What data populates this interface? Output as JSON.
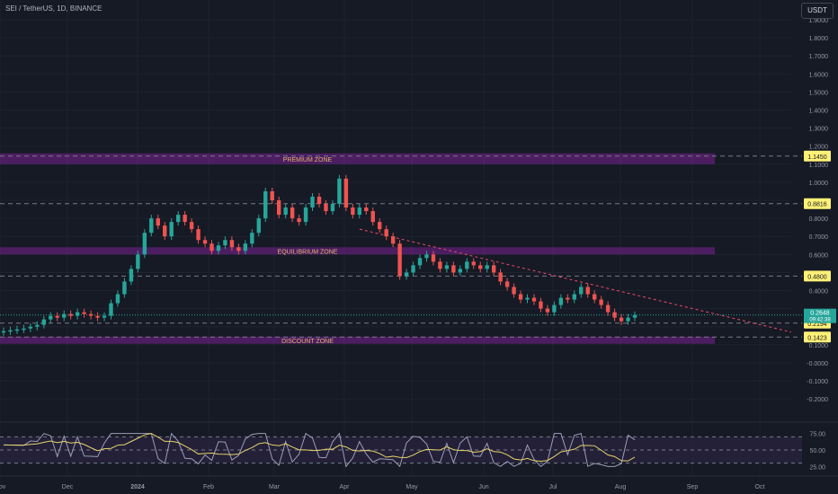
{
  "header": {
    "symbol": "SEI / TetherUS, 1D, BINANCE",
    "quote_currency": "USDT"
  },
  "colors": {
    "background": "#161a25",
    "grid": "#1f2330",
    "axis_text": "#9598a1",
    "candle_up": "#26a69a",
    "candle_down": "#ef5350",
    "zone_fill": "#8e24aa",
    "zone_text": "#e0b36a",
    "level_line": "#787b86",
    "level_label_bg": "#fff176",
    "trendline": "#e74c6a",
    "current_price_bg": "#26a69a",
    "rsi_line": "#9c9eb8",
    "rsi_ma": "#e6d36a",
    "rsi_band": "#2a2340"
  },
  "chart_data": {
    "type": "candlestick",
    "price_axis": {
      "ticks": [
        "1.9000",
        "1.8000",
        "1.7000",
        "1.6000",
        "1.5000",
        "1.4000",
        "1.3000",
        "1.2000",
        "1.1000",
        "1.0000",
        "0.9000",
        "0.8000",
        "0.7000",
        "0.6000",
        "0.5000",
        "0.4000",
        "0.3000",
        "0.2000",
        "0.1000",
        "-0.0000",
        "-0.1000",
        "-0.2000"
      ],
      "scale": "log-like",
      "range": [
        -0.25,
        2.0
      ]
    },
    "time_axis": {
      "labels": [
        "Nov",
        "Dec",
        "2024",
        "Feb",
        "Mar",
        "Apr",
        "May",
        "Jun",
        "Jul",
        "Aug",
        "Sep",
        "Oct"
      ]
    },
    "zones": [
      {
        "label": "PREMIUM ZONE",
        "low": 1.1,
        "high": 1.16
      },
      {
        "label": "EQUILIBRIUM ZONE",
        "low": 0.6,
        "high": 0.64
      },
      {
        "label": "DISCOUNT ZONE",
        "low": 0.11,
        "high": 0.145
      }
    ],
    "levels": [
      {
        "label": "1.1450",
        "value": 1.145
      },
      {
        "label": "0.8816",
        "value": 0.8816
      },
      {
        "label": "0.4800",
        "value": 0.48
      },
      {
        "label": "0.2194",
        "value": 0.2194
      },
      {
        "label": "0.1423",
        "value": 0.1423
      }
    ],
    "current_price": {
      "value": 0.2648,
      "label": "0.2648",
      "countdown": "09:42:38"
    },
    "trendline": {
      "from": {
        "time": "Apr 1",
        "price": 0.74
      },
      "to": {
        "time": "Oct 5",
        "price": 0.17
      }
    },
    "price_series": [
      [
        0.17,
        0.175
      ],
      [
        0.175,
        0.18
      ],
      [
        0.18,
        0.185
      ],
      [
        0.185,
        0.19
      ],
      [
        0.19,
        0.2
      ],
      [
        0.2,
        0.21
      ],
      [
        0.21,
        0.24
      ],
      [
        0.24,
        0.26
      ],
      [
        0.26,
        0.25
      ],
      [
        0.25,
        0.27
      ],
      [
        0.27,
        0.26
      ],
      [
        0.26,
        0.28
      ],
      [
        0.28,
        0.27
      ],
      [
        0.27,
        0.26
      ],
      [
        0.26,
        0.25
      ],
      [
        0.25,
        0.26
      ],
      [
        0.26,
        0.33
      ],
      [
        0.33,
        0.38
      ],
      [
        0.38,
        0.45
      ],
      [
        0.45,
        0.52
      ],
      [
        0.52,
        0.6
      ],
      [
        0.6,
        0.72
      ],
      [
        0.72,
        0.8
      ],
      [
        0.8,
        0.76
      ],
      [
        0.76,
        0.7
      ],
      [
        0.7,
        0.78
      ],
      [
        0.78,
        0.82
      ],
      [
        0.82,
        0.78
      ],
      [
        0.78,
        0.74
      ],
      [
        0.74,
        0.68
      ],
      [
        0.68,
        0.66
      ],
      [
        0.66,
        0.62
      ],
      [
        0.62,
        0.65
      ],
      [
        0.65,
        0.68
      ],
      [
        0.68,
        0.64
      ],
      [
        0.64,
        0.62
      ],
      [
        0.62,
        0.66
      ],
      [
        0.66,
        0.72
      ],
      [
        0.72,
        0.8
      ],
      [
        0.8,
        0.95
      ],
      [
        0.95,
        0.9
      ],
      [
        0.9,
        0.82
      ],
      [
        0.82,
        0.86
      ],
      [
        0.86,
        0.8
      ],
      [
        0.8,
        0.78
      ],
      [
        0.78,
        0.86
      ],
      [
        0.86,
        0.92
      ],
      [
        0.92,
        0.88
      ],
      [
        0.88,
        0.84
      ],
      [
        0.84,
        0.88
      ],
      [
        0.88,
        1.02
      ],
      [
        1.02,
        0.86
      ],
      [
        0.86,
        0.82
      ],
      [
        0.82,
        0.86
      ],
      [
        0.86,
        0.84
      ],
      [
        0.84,
        0.78
      ],
      [
        0.78,
        0.74
      ],
      [
        0.74,
        0.7
      ],
      [
        0.7,
        0.66
      ],
      [
        0.66,
        0.48
      ],
      [
        0.48,
        0.5
      ],
      [
        0.5,
        0.54
      ],
      [
        0.54,
        0.58
      ],
      [
        0.58,
        0.6
      ],
      [
        0.6,
        0.56
      ],
      [
        0.56,
        0.52
      ],
      [
        0.52,
        0.54
      ],
      [
        0.54,
        0.5
      ],
      [
        0.5,
        0.52
      ],
      [
        0.52,
        0.56
      ],
      [
        0.56,
        0.54
      ],
      [
        0.54,
        0.52
      ],
      [
        0.52,
        0.54
      ],
      [
        0.54,
        0.5
      ],
      [
        0.5,
        0.45
      ],
      [
        0.45,
        0.42
      ],
      [
        0.42,
        0.38
      ],
      [
        0.38,
        0.35
      ],
      [
        0.35,
        0.36
      ],
      [
        0.36,
        0.34
      ],
      [
        0.34,
        0.3
      ],
      [
        0.3,
        0.28
      ],
      [
        0.28,
        0.32
      ],
      [
        0.32,
        0.36
      ],
      [
        0.36,
        0.35
      ],
      [
        0.35,
        0.38
      ],
      [
        0.38,
        0.42
      ],
      [
        0.42,
        0.38
      ],
      [
        0.38,
        0.35
      ],
      [
        0.35,
        0.32
      ],
      [
        0.32,
        0.28
      ],
      [
        0.28,
        0.25
      ],
      [
        0.25,
        0.23
      ],
      [
        0.23,
        0.25
      ],
      [
        0.25,
        0.2648
      ]
    ],
    "rsi": {
      "ticks": [
        "75.00",
        "50.00",
        "25.00"
      ],
      "upper": 70,
      "middle": 50,
      "lower": 30
    }
  }
}
